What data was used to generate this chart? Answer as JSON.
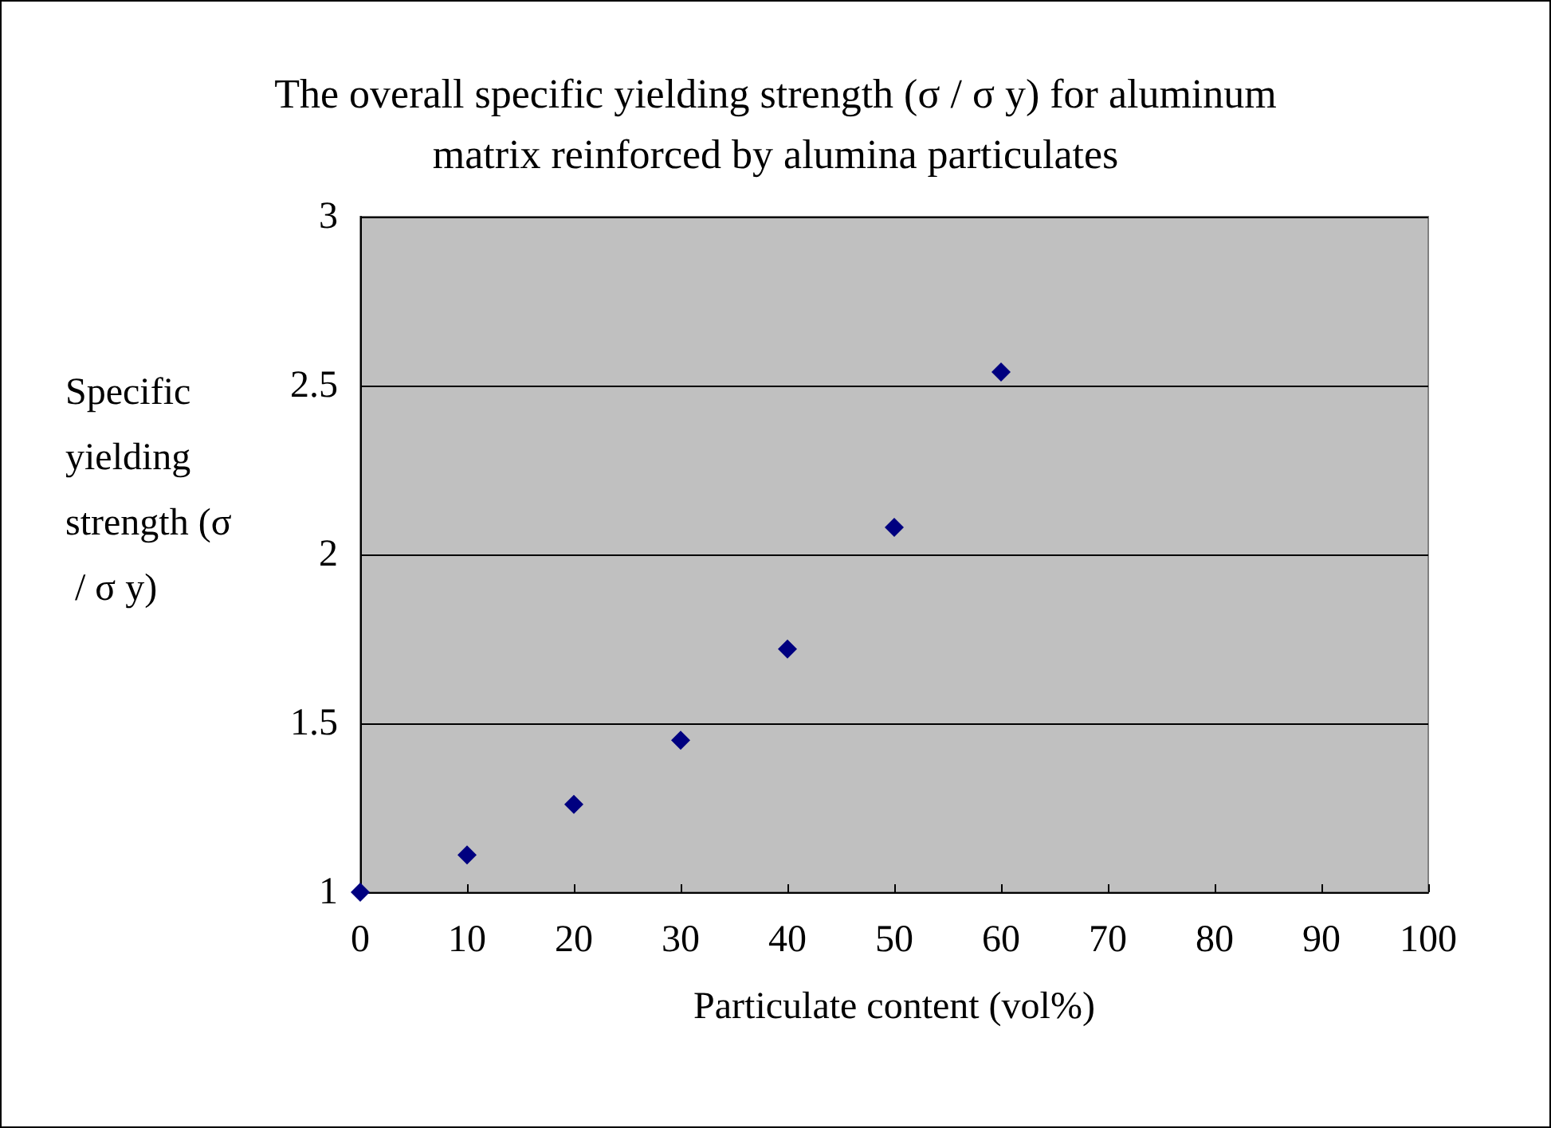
{
  "chart_data": {
    "type": "scatter",
    "title": "The overall specific yielding strength (σ / σ y) for aluminum\nmatrix reinforced by alumina particulates",
    "xlabel": "Particulate content (vol%)",
    "ylabel": "Specific yielding strength (σ / σ y)",
    "x": [
      0,
      10,
      20,
      30,
      40,
      50,
      60
    ],
    "series": [
      {
        "color": "#000080",
        "values": [
          1.0,
          1.11,
          1.26,
          1.45,
          1.72,
          2.08,
          2.54
        ]
      }
    ],
    "xlim": [
      0,
      100
    ],
    "xticks": [
      0,
      10,
      20,
      30,
      40,
      50,
      60,
      70,
      80,
      90,
      100
    ],
    "ylim": [
      1,
      3
    ],
    "yticks": [
      1,
      1.5,
      2,
      2.5,
      3
    ],
    "grid": "y",
    "marker": "diamond"
  }
}
